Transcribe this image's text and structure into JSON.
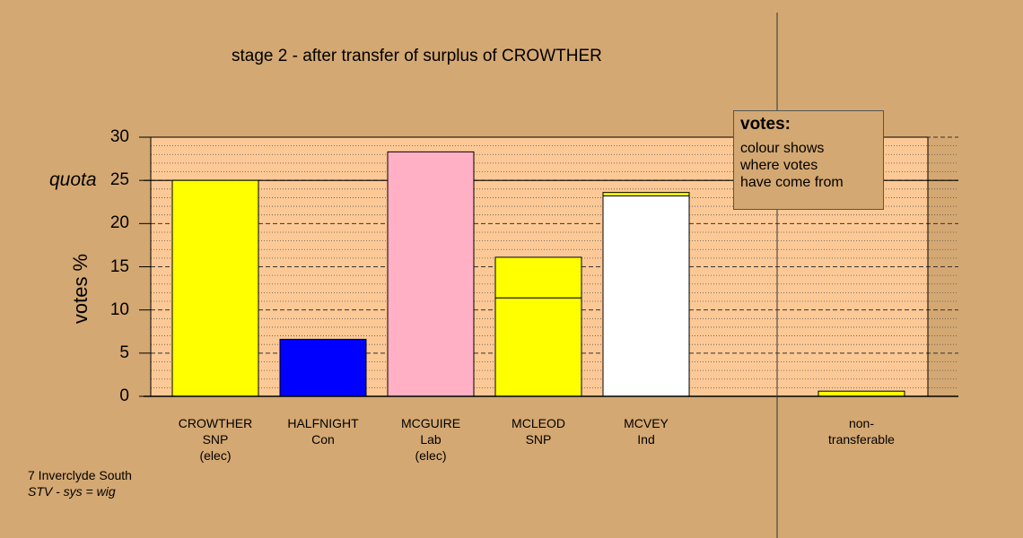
{
  "title": "stage 2 - after transfer of surplus of CROWTHER",
  "legend": {
    "title": "votes:",
    "lines": [
      "colour shows",
      "where votes",
      "have come from"
    ]
  },
  "footer": {
    "constituency": "7 Inverclyde South",
    "system": "STV - sys = wig"
  },
  "chart_data": {
    "type": "bar",
    "title": "stage 2 - after transfer of surplus of CROWTHER",
    "ylabel": "votes %",
    "xlabel": "",
    "ylim": [
      0,
      30
    ],
    "yticks": [
      "0",
      "5",
      "10",
      "15",
      "20",
      "25",
      "30"
    ],
    "quota": 25,
    "quota_label": "quota",
    "categories": [
      {
        "label": [
          "CROWTHER",
          "SNP",
          "(elec)"
        ],
        "segments": [
          {
            "value": 25.0,
            "color": "#ffff00"
          }
        ]
      },
      {
        "label": [
          "HALFNIGHT",
          "Con"
        ],
        "segments": [
          {
            "value": 6.6,
            "color": "#0000ff"
          }
        ]
      },
      {
        "label": [
          "MCGUIRE",
          "Lab",
          "(elec)"
        ],
        "segments": [
          {
            "value": 28.3,
            "color": "#ffb0c4"
          }
        ]
      },
      {
        "label": [
          "MCLEOD",
          "SNP"
        ],
        "segments": [
          {
            "value": 11.4,
            "color": "#ffff00"
          },
          {
            "value": 4.7,
            "color": "#ffff00"
          }
        ]
      },
      {
        "label": [
          "MCVEY",
          "Ind"
        ],
        "segments": [
          {
            "value": 23.2,
            "color": "#ffffff"
          },
          {
            "value": 0.4,
            "color": "#ffff00"
          }
        ]
      },
      {
        "label": [
          "non-",
          "transferable"
        ],
        "segments": [
          {
            "value": 0.6,
            "color": "#ffff00"
          }
        ]
      }
    ],
    "grid": true
  }
}
